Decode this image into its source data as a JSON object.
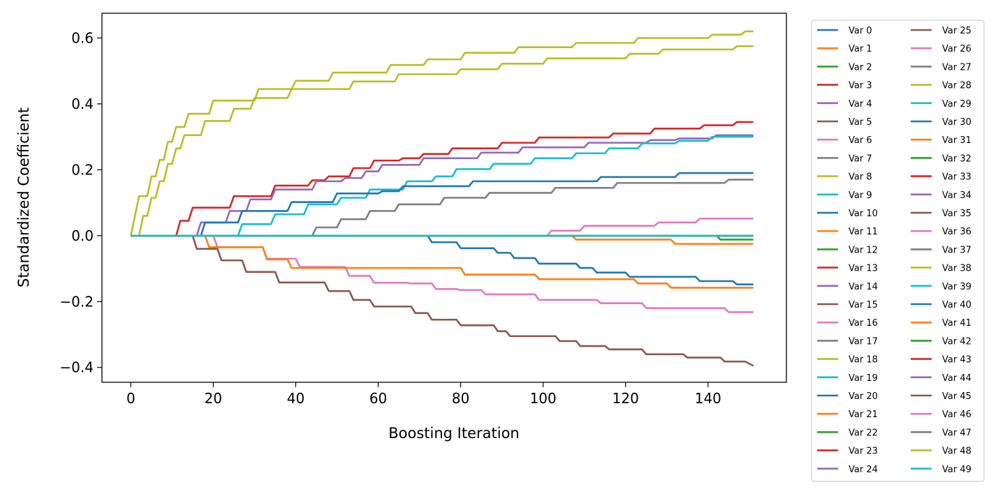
{
  "chart_data": {
    "type": "line",
    "xlabel": "Boosting Iteration",
    "ylabel": "Standardized Coefficient",
    "xlim": [
      -7,
      159
    ],
    "ylim": [
      -0.445,
      0.675
    ],
    "xticks": [
      0,
      20,
      40,
      60,
      80,
      100,
      120,
      140
    ],
    "yticks": [
      -0.4,
      -0.2,
      0.0,
      0.2,
      0.4,
      0.6
    ],
    "ytick_labels": [
      "−0.4",
      "−0.2",
      "0.0",
      "0.2",
      "0.4",
      "0.6"
    ],
    "grid": false,
    "legend": {
      "placement": "outside-right",
      "columns": 2
    },
    "palette": [
      "#1f77b4",
      "#ff7f0e",
      "#2ca02c",
      "#d62728",
      "#9467bd",
      "#8c564b",
      "#e377c2",
      "#7f7f7f",
      "#bcbd22",
      "#17becf"
    ],
    "series_names": [
      "Var 0",
      "Var 1",
      "Var 2",
      "Var 3",
      "Var 4",
      "Var 5",
      "Var 6",
      "Var 7",
      "Var 8",
      "Var 9",
      "Var 10",
      "Var 11",
      "Var 12",
      "Var 13",
      "Var 14",
      "Var 15",
      "Var 16",
      "Var 17",
      "Var 18",
      "Var 19",
      "Var 20",
      "Var 21",
      "Var 22",
      "Var 23",
      "Var 24",
      "Var 25",
      "Var 26",
      "Var 27",
      "Var 28",
      "Var 29",
      "Var 30",
      "Var 31",
      "Var 32",
      "Var 33",
      "Var 34",
      "Var 35",
      "Var 36",
      "Var 37",
      "Var 38",
      "Var 39",
      "Var 40",
      "Var 41",
      "Var 42",
      "Var 43",
      "Var 44",
      "Var 45",
      "Var 46",
      "Var 47",
      "Var 48",
      "Var 49"
    ],
    "x_max": 151,
    "series_data": {
      "Var 3": [
        [
          0,
          0
        ],
        [
          11,
          0
        ],
        [
          12,
          0.045
        ],
        [
          14,
          0.045
        ],
        [
          15,
          0.085
        ],
        [
          24,
          0.085
        ],
        [
          25,
          0.12
        ],
        [
          34,
          0.12
        ],
        [
          35,
          0.152
        ],
        [
          43,
          0.152
        ],
        [
          44,
          0.168
        ],
        [
          47,
          0.168
        ],
        [
          48,
          0.18
        ],
        [
          53,
          0.18
        ],
        [
          54,
          0.205
        ],
        [
          58,
          0.205
        ],
        [
          59,
          0.228
        ],
        [
          65,
          0.228
        ],
        [
          66,
          0.235
        ],
        [
          70,
          0.235
        ],
        [
          71,
          0.248
        ],
        [
          77,
          0.248
        ],
        [
          78,
          0.265
        ],
        [
          89,
          0.265
        ],
        [
          90,
          0.282
        ],
        [
          98,
          0.282
        ],
        [
          99,
          0.298
        ],
        [
          116,
          0.298
        ],
        [
          117,
          0.31
        ],
        [
          126,
          0.31
        ],
        [
          127,
          0.325
        ],
        [
          138,
          0.325
        ],
        [
          139,
          0.335
        ],
        [
          146,
          0.335
        ],
        [
          147,
          0.345
        ],
        [
          151,
          0.345
        ]
      ],
      "Var 4": [
        [
          0,
          0
        ],
        [
          16,
          0
        ],
        [
          17,
          0.04
        ],
        [
          23,
          0.04
        ],
        [
          24,
          0.075
        ],
        [
          28,
          0.075
        ],
        [
          29,
          0.11
        ],
        [
          34,
          0.11
        ],
        [
          35,
          0.14
        ],
        [
          44,
          0.14
        ],
        [
          45,
          0.165
        ],
        [
          51,
          0.165
        ],
        [
          52,
          0.175
        ],
        [
          56,
          0.175
        ],
        [
          57,
          0.195
        ],
        [
          60,
          0.195
        ],
        [
          61,
          0.215
        ],
        [
          70,
          0.215
        ],
        [
          71,
          0.235
        ],
        [
          84,
          0.235
        ],
        [
          85,
          0.252
        ],
        [
          94,
          0.252
        ],
        [
          95,
          0.268
        ],
        [
          110,
          0.268
        ],
        [
          111,
          0.282
        ],
        [
          125,
          0.282
        ],
        [
          126,
          0.29
        ],
        [
          132,
          0.29
        ],
        [
          133,
          0.295
        ],
        [
          141,
          0.295
        ],
        [
          142,
          0.305
        ],
        [
          151,
          0.305
        ]
      ],
      "Var 9": [
        [
          0,
          0
        ],
        [
          26,
          0
        ],
        [
          27,
          0.035
        ],
        [
          34,
          0.035
        ],
        [
          35,
          0.065
        ],
        [
          42,
          0.065
        ],
        [
          43,
          0.095
        ],
        [
          50,
          0.095
        ],
        [
          51,
          0.115
        ],
        [
          57,
          0.115
        ],
        [
          58,
          0.14
        ],
        [
          66,
          0.14
        ],
        [
          67,
          0.165
        ],
        [
          73,
          0.165
        ],
        [
          74,
          0.18
        ],
        [
          78,
          0.18
        ],
        [
          79,
          0.202
        ],
        [
          87,
          0.202
        ],
        [
          88,
          0.218
        ],
        [
          97,
          0.218
        ],
        [
          98,
          0.235
        ],
        [
          107,
          0.235
        ],
        [
          108,
          0.25
        ],
        [
          115,
          0.25
        ],
        [
          116,
          0.265
        ],
        [
          123,
          0.265
        ],
        [
          124,
          0.28
        ],
        [
          132,
          0.28
        ],
        [
          133,
          0.288
        ],
        [
          140,
          0.288
        ],
        [
          141,
          0.3
        ],
        [
          151,
          0.3
        ]
      ],
      "Var 10": [
        [
          0,
          0
        ],
        [
          17,
          0
        ],
        [
          18,
          0.04
        ],
        [
          26,
          0.04
        ],
        [
          27,
          0.075
        ],
        [
          38,
          0.075
        ],
        [
          39,
          0.102
        ],
        [
          49,
          0.102
        ],
        [
          50,
          0.128
        ],
        [
          60,
          0.128
        ],
        [
          61,
          0.135
        ],
        [
          65,
          0.135
        ],
        [
          66,
          0.15
        ],
        [
          82,
          0.15
        ],
        [
          83,
          0.165
        ],
        [
          113,
          0.165
        ],
        [
          114,
          0.178
        ],
        [
          132,
          0.178
        ],
        [
          133,
          0.19
        ],
        [
          151,
          0.19
        ]
      ],
      "Var 7": [
        [
          0,
          0
        ],
        [
          44,
          0
        ],
        [
          45,
          0.025
        ],
        [
          50,
          0.025
        ],
        [
          51,
          0.05
        ],
        [
          57,
          0.05
        ],
        [
          58,
          0.075
        ],
        [
          64,
          0.075
        ],
        [
          65,
          0.095
        ],
        [
          75,
          0.095
        ],
        [
          76,
          0.115
        ],
        [
          86,
          0.115
        ],
        [
          87,
          0.13
        ],
        [
          102,
          0.13
        ],
        [
          103,
          0.145
        ],
        [
          117,
          0.145
        ],
        [
          118,
          0.16
        ],
        [
          144,
          0.16
        ],
        [
          145,
          0.17
        ],
        [
          151,
          0.17
        ]
      ],
      "Var 8": [
        [
          0,
          0
        ],
        [
          2,
          0.12
        ],
        [
          4,
          0.12
        ],
        [
          5,
          0.18
        ],
        [
          6,
          0.18
        ],
        [
          7,
          0.23
        ],
        [
          8,
          0.23
        ],
        [
          9,
          0.285
        ],
        [
          10,
          0.285
        ],
        [
          11,
          0.33
        ],
        [
          13,
          0.33
        ],
        [
          14,
          0.37
        ],
        [
          19,
          0.37
        ],
        [
          20,
          0.41
        ],
        [
          30,
          0.41
        ],
        [
          31,
          0.445
        ],
        [
          39,
          0.445
        ],
        [
          40,
          0.47
        ],
        [
          48,
          0.47
        ],
        [
          49,
          0.495
        ],
        [
          62,
          0.495
        ],
        [
          63,
          0.518
        ],
        [
          71,
          0.518
        ],
        [
          72,
          0.535
        ],
        [
          80,
          0.535
        ],
        [
          81,
          0.555
        ],
        [
          93,
          0.555
        ],
        [
          94,
          0.572
        ],
        [
          107,
          0.572
        ],
        [
          108,
          0.585
        ],
        [
          122,
          0.585
        ],
        [
          123,
          0.6
        ],
        [
          140,
          0.6
        ],
        [
          141,
          0.61
        ],
        [
          148,
          0.61
        ],
        [
          149,
          0.62
        ],
        [
          151,
          0.62
        ]
      ],
      "Var 18": [
        [
          0,
          0
        ],
        [
          2,
          0
        ],
        [
          3,
          0.06
        ],
        [
          4,
          0.06
        ],
        [
          5,
          0.115
        ],
        [
          6,
          0.115
        ],
        [
          7,
          0.165
        ],
        [
          8,
          0.165
        ],
        [
          9,
          0.218
        ],
        [
          10,
          0.218
        ],
        [
          11,
          0.265
        ],
        [
          12,
          0.265
        ],
        [
          13,
          0.305
        ],
        [
          17,
          0.305
        ],
        [
          18,
          0.348
        ],
        [
          24,
          0.348
        ],
        [
          25,
          0.385
        ],
        [
          29,
          0.385
        ],
        [
          30,
          0.418
        ],
        [
          38,
          0.418
        ],
        [
          39,
          0.445
        ],
        [
          53,
          0.445
        ],
        [
          54,
          0.468
        ],
        [
          64,
          0.468
        ],
        [
          65,
          0.49
        ],
        [
          79,
          0.49
        ],
        [
          80,
          0.505
        ],
        [
          89,
          0.505
        ],
        [
          90,
          0.522
        ],
        [
          100,
          0.522
        ],
        [
          101,
          0.538
        ],
        [
          120,
          0.538
        ],
        [
          121,
          0.552
        ],
        [
          128,
          0.552
        ],
        [
          129,
          0.565
        ],
        [
          146,
          0.565
        ],
        [
          147,
          0.575
        ],
        [
          151,
          0.575
        ]
      ],
      "Var 6": [
        [
          0,
          0
        ],
        [
          20,
          0
        ],
        [
          21,
          -0.035
        ],
        [
          32,
          -0.035
        ],
        [
          33,
          -0.07
        ],
        [
          40,
          -0.07
        ],
        [
          41,
          -0.095
        ],
        [
          52,
          -0.095
        ],
        [
          53,
          -0.122
        ],
        [
          58,
          -0.122
        ],
        [
          59,
          -0.143
        ],
        [
          67,
          -0.143
        ],
        [
          68,
          -0.145
        ],
        [
          73,
          -0.145
        ],
        [
          74,
          -0.162
        ],
        [
          79,
          -0.162
        ],
        [
          80,
          -0.165
        ],
        [
          85,
          -0.165
        ],
        [
          86,
          -0.178
        ],
        [
          98,
          -0.178
        ],
        [
          99,
          -0.195
        ],
        [
          113,
          -0.195
        ],
        [
          114,
          -0.205
        ],
        [
          124,
          -0.205
        ],
        [
          125,
          -0.22
        ],
        [
          144,
          -0.22
        ],
        [
          145,
          -0.232
        ],
        [
          151,
          -0.232
        ]
      ],
      "Var 26": [
        [
          0,
          0
        ],
        [
          101,
          0
        ],
        [
          102,
          0.015
        ],
        [
          109,
          0.015
        ],
        [
          110,
          0.03
        ],
        [
          127,
          0.03
        ],
        [
          128,
          0.04
        ],
        [
          137,
          0.04
        ],
        [
          138,
          0.052
        ],
        [
          151,
          0.052
        ]
      ],
      "Var 5": [
        [
          0,
          0
        ],
        [
          15,
          0
        ],
        [
          16,
          -0.04
        ],
        [
          21,
          -0.04
        ],
        [
          22,
          -0.075
        ],
        [
          27,
          -0.075
        ],
        [
          28,
          -0.11
        ],
        [
          35,
          -0.11
        ],
        [
          36,
          -0.142
        ],
        [
          47,
          -0.142
        ],
        [
          48,
          -0.168
        ],
        [
          53,
          -0.168
        ],
        [
          54,
          -0.195
        ],
        [
          58,
          -0.195
        ],
        [
          59,
          -0.215
        ],
        [
          68,
          -0.215
        ],
        [
          69,
          -0.235
        ],
        [
          72,
          -0.235
        ],
        [
          73,
          -0.255
        ],
        [
          79,
          -0.255
        ],
        [
          80,
          -0.272
        ],
        [
          88,
          -0.272
        ],
        [
          89,
          -0.29
        ],
        [
          91,
          -0.29
        ],
        [
          92,
          -0.305
        ],
        [
          103,
          -0.305
        ],
        [
          104,
          -0.32
        ],
        [
          108,
          -0.32
        ],
        [
          109,
          -0.335
        ],
        [
          115,
          -0.335
        ],
        [
          116,
          -0.345
        ],
        [
          124,
          -0.345
        ],
        [
          125,
          -0.36
        ],
        [
          134,
          -0.36
        ],
        [
          135,
          -0.37
        ],
        [
          143,
          -0.37
        ],
        [
          144,
          -0.382
        ],
        [
          149,
          -0.382
        ],
        [
          151,
          -0.395
        ]
      ],
      "Var 11": [
        [
          0,
          0
        ],
        [
          18,
          0
        ],
        [
          19,
          -0.035
        ],
        [
          32,
          -0.035
        ],
        [
          33,
          -0.072
        ],
        [
          38,
          -0.072
        ],
        [
          39,
          -0.098
        ],
        [
          80,
          -0.098
        ],
        [
          81,
          -0.118
        ],
        [
          98,
          -0.118
        ],
        [
          99,
          -0.132
        ],
        [
          122,
          -0.132
        ],
        [
          123,
          -0.145
        ],
        [
          130,
          -0.145
        ],
        [
          131,
          -0.158
        ],
        [
          151,
          -0.158
        ]
      ],
      "Var 20": [
        [
          0,
          0
        ],
        [
          72,
          0
        ],
        [
          73,
          -0.02
        ],
        [
          79,
          -0.02
        ],
        [
          80,
          -0.038
        ],
        [
          88,
          -0.038
        ],
        [
          89,
          -0.052
        ],
        [
          92,
          -0.052
        ],
        [
          93,
          -0.068
        ],
        [
          98,
          -0.068
        ],
        [
          99,
          -0.085
        ],
        [
          108,
          -0.085
        ],
        [
          109,
          -0.098
        ],
        [
          112,
          -0.098
        ],
        [
          113,
          -0.112
        ],
        [
          120,
          -0.112
        ],
        [
          121,
          -0.125
        ],
        [
          137,
          -0.125
        ],
        [
          138,
          -0.138
        ],
        [
          146,
          -0.138
        ],
        [
          147,
          -0.148
        ],
        [
          151,
          -0.148
        ]
      ],
      "Var 21": [
        [
          0,
          0
        ],
        [
          107,
          0
        ],
        [
          108,
          -0.012
        ],
        [
          131,
          -0.012
        ],
        [
          132,
          -0.025
        ],
        [
          151,
          -0.025
        ]
      ],
      "Var 22": [
        [
          0,
          0
        ],
        [
          142,
          0
        ],
        [
          143,
          -0.012
        ],
        [
          151,
          -0.012
        ]
      ]
    }
  }
}
